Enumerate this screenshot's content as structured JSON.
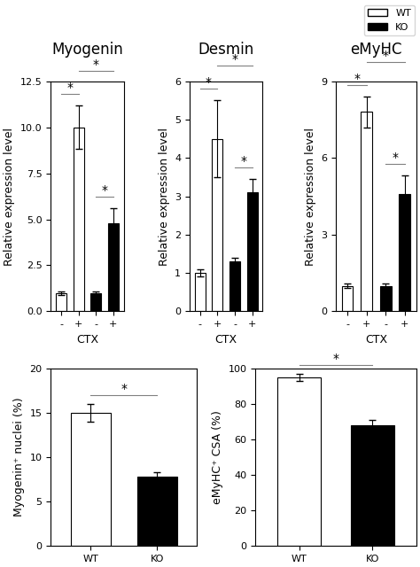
{
  "chart_data": [
    {
      "type": "bar",
      "title": "Myogenin",
      "xlabel": "CTX",
      "ylabel": "Relative expression level",
      "categories": [
        "-",
        "+",
        "-",
        "+"
      ],
      "series": [
        {
          "color": "white",
          "values": [
            1.0,
            10.0,
            null,
            null
          ],
          "errors": [
            0.1,
            1.2,
            null,
            null
          ]
        },
        {
          "color": "black",
          "values": [
            null,
            null,
            1.0,
            4.8
          ],
          "errors": [
            null,
            null,
            0.1,
            0.8
          ]
        }
      ],
      "ylim": [
        0.0,
        12.5
      ],
      "yticks": [
        0.0,
        2.5,
        5.0,
        7.5,
        10.0,
        12.5
      ],
      "annotations": [
        {
          "text": "*",
          "between": [
            0,
            1
          ]
        },
        {
          "text": "*",
          "between": [
            2,
            3
          ]
        },
        {
          "text": "*",
          "between": [
            1,
            3
          ]
        }
      ]
    },
    {
      "type": "bar",
      "title": "Desmin",
      "xlabel": "CTX",
      "ylabel": "Relative expression level",
      "categories": [
        "-",
        "+",
        "-",
        "+"
      ],
      "series": [
        {
          "color": "white",
          "values": [
            1.0,
            4.5,
            null,
            null
          ],
          "errors": [
            0.1,
            1.0,
            null,
            null
          ]
        },
        {
          "color": "black",
          "values": [
            null,
            null,
            1.3,
            3.1
          ],
          "errors": [
            null,
            null,
            0.1,
            0.35
          ]
        }
      ],
      "ylim": [
        0,
        6
      ],
      "yticks": [
        0,
        1,
        2,
        3,
        4,
        5,
        6
      ],
      "annotations": [
        {
          "text": "*",
          "between": [
            0,
            1
          ]
        },
        {
          "text": "*",
          "between": [
            2,
            3
          ]
        },
        {
          "text": "*",
          "between": [
            1,
            3
          ]
        }
      ]
    },
    {
      "type": "bar",
      "title": "eMyHC",
      "xlabel": "CTX",
      "ylabel": "Relative expression level",
      "categories": [
        "-",
        "+",
        "-",
        "+"
      ],
      "series": [
        {
          "name": "WT",
          "color": "white",
          "values": [
            1.0,
            7.8,
            null,
            null
          ],
          "errors": [
            0.1,
            0.6,
            null,
            null
          ]
        },
        {
          "name": "KO",
          "color": "black",
          "values": [
            null,
            null,
            1.0,
            4.6
          ],
          "errors": [
            null,
            null,
            0.1,
            0.7
          ]
        }
      ],
      "ylim": [
        0,
        9
      ],
      "yticks": [
        0,
        3,
        6,
        9
      ],
      "legend": "upper right",
      "annotations": [
        {
          "text": "*",
          "between": [
            0,
            1
          ]
        },
        {
          "text": "*",
          "between": [
            2,
            3
          ]
        },
        {
          "text": "*",
          "between": [
            1,
            3
          ]
        }
      ]
    },
    {
      "type": "bar",
      "ylabel": "Myogenin⁺ nuclei (%)",
      "categories": [
        "WT",
        "KO"
      ],
      "values": [
        15.0,
        7.8
      ],
      "errors": [
        1.0,
        0.5
      ],
      "colors": [
        "white",
        "black"
      ],
      "ylim": [
        0,
        20
      ],
      "yticks": [
        0,
        5,
        10,
        15,
        20
      ],
      "annotations": [
        {
          "text": "*",
          "between": [
            0,
            1
          ]
        }
      ]
    },
    {
      "type": "bar",
      "ylabel": "eMyHC⁺ CSA (%)",
      "categories": [
        "WT",
        "KO"
      ],
      "values": [
        95.0,
        68.0
      ],
      "errors": [
        2.0,
        3.0
      ],
      "colors": [
        "white",
        "black"
      ],
      "ylim": [
        0,
        100
      ],
      "yticks": [
        0,
        20,
        40,
        60,
        80,
        100
      ],
      "annotations": [
        {
          "text": "*",
          "between": [
            0,
            1
          ]
        }
      ]
    }
  ]
}
